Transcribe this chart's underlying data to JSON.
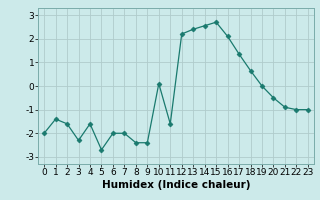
{
  "x": [
    0,
    1,
    2,
    3,
    4,
    5,
    6,
    7,
    8,
    9,
    10,
    11,
    12,
    13,
    14,
    15,
    16,
    17,
    18,
    19,
    20,
    21,
    22,
    23
  ],
  "y": [
    -2.0,
    -1.4,
    -1.6,
    -2.3,
    -1.6,
    -2.7,
    -2.0,
    -2.0,
    -2.4,
    -2.4,
    0.1,
    -1.6,
    2.2,
    2.4,
    2.55,
    2.7,
    2.1,
    1.35,
    0.65,
    0.0,
    -0.5,
    -0.9,
    -1.0,
    -1.0
  ],
  "line_color": "#1a7a6e",
  "marker": "D",
  "marker_size": 2.5,
  "bg_color": "#cceaea",
  "grid_color": "#b0cccc",
  "xlabel": "Humidex (Indice chaleur)",
  "ylim": [
    -3.3,
    3.3
  ],
  "xlim": [
    -0.5,
    23.5
  ],
  "yticks": [
    -3,
    -2,
    -1,
    0,
    1,
    2,
    3
  ],
  "xticks": [
    0,
    1,
    2,
    3,
    4,
    5,
    6,
    7,
    8,
    9,
    10,
    11,
    12,
    13,
    14,
    15,
    16,
    17,
    18,
    19,
    20,
    21,
    22,
    23
  ],
  "xlabel_fontsize": 7.5,
  "tick_fontsize": 6.5,
  "spine_color": "#7aacaa"
}
